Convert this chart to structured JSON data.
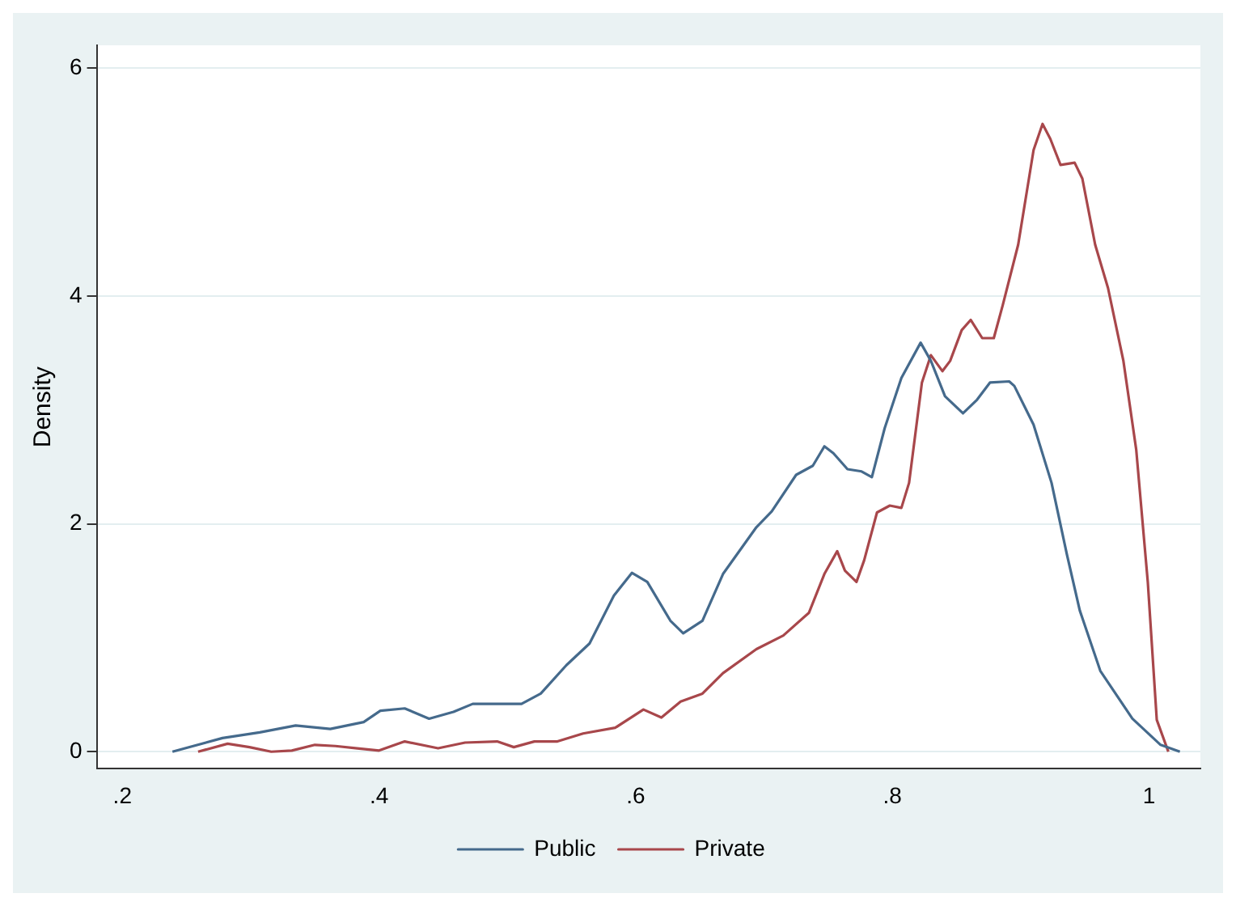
{
  "chart_data": {
    "type": "line",
    "ylabel": "Density",
    "xlim": [
      0.18,
      1.04
    ],
    "ylim": [
      -0.15,
      6.2
    ],
    "xticks": [
      {
        "value": 0.2,
        "label": ".2"
      },
      {
        "value": 0.4,
        "label": ".4"
      },
      {
        "value": 0.6,
        "label": ".6"
      },
      {
        "value": 0.8,
        "label": ".8"
      },
      {
        "value": 1,
        "label": "1"
      }
    ],
    "yticks": [
      0,
      2,
      4,
      6
    ],
    "grid": "y",
    "legend": "bottom",
    "marker": "none",
    "line_style": "solid",
    "series": [
      {
        "name": "Public",
        "color": "#456a8c",
        "x": [
          0.239,
          0.278,
          0.307,
          0.335,
          0.362,
          0.388,
          0.401,
          0.42,
          0.439,
          0.458,
          0.473,
          0.511,
          0.526,
          0.546,
          0.564,
          0.583,
          0.597,
          0.609,
          0.627,
          0.637,
          0.652,
          0.668,
          0.694,
          0.706,
          0.725,
          0.738,
          0.747,
          0.754,
          0.765,
          0.776,
          0.784,
          0.794,
          0.807,
          0.822,
          0.83,
          0.841,
          0.855,
          0.866,
          0.876,
          0.891,
          0.895,
          0.91,
          0.924,
          0.936,
          0.946,
          0.962,
          0.987,
          1.009,
          1.024
        ],
        "values": [
          0,
          0.12,
          0.17,
          0.23,
          0.2,
          0.26,
          0.36,
          0.38,
          0.29,
          0.35,
          0.42,
          0.42,
          0.51,
          0.76,
          0.95,
          1.37,
          1.57,
          1.49,
          1.15,
          1.04,
          1.15,
          1.56,
          1.97,
          2.11,
          2.43,
          2.51,
          2.68,
          2.62,
          2.48,
          2.46,
          2.41,
          2.84,
          3.28,
          3.59,
          3.43,
          3.12,
          2.97,
          3.09,
          3.24,
          3.25,
          3.21,
          2.87,
          2.36,
          1.73,
          1.24,
          0.71,
          0.29,
          0.06,
          0
        ]
      },
      {
        "name": "Private",
        "color": "#a8474b",
        "x": [
          0.259,
          0.282,
          0.299,
          0.316,
          0.332,
          0.35,
          0.366,
          0.383,
          0.4,
          0.42,
          0.446,
          0.467,
          0.492,
          0.505,
          0.521,
          0.539,
          0.559,
          0.584,
          0.606,
          0.62,
          0.635,
          0.652,
          0.668,
          0.694,
          0.715,
          0.735,
          0.747,
          0.757,
          0.763,
          0.772,
          0.778,
          0.788,
          0.798,
          0.807,
          0.813,
          0.823,
          0.83,
          0.839,
          0.845,
          0.854,
          0.861,
          0.87,
          0.879,
          0.886,
          0.898,
          0.91,
          0.917,
          0.923,
          0.931,
          0.942,
          0.948,
          0.958,
          0.968,
          0.98,
          0.99,
          0.999,
          1.006,
          1.015
        ],
        "values": [
          0,
          0.07,
          0.04,
          0,
          0.01,
          0.06,
          0.05,
          0.03,
          0.01,
          0.09,
          0.03,
          0.08,
          0.09,
          0.04,
          0.09,
          0.09,
          0.16,
          0.21,
          0.37,
          0.3,
          0.44,
          0.51,
          0.69,
          0.9,
          1.02,
          1.22,
          1.56,
          1.76,
          1.59,
          1.49,
          1.68,
          2.1,
          2.16,
          2.14,
          2.36,
          3.24,
          3.48,
          3.34,
          3.43,
          3.7,
          3.79,
          3.63,
          3.63,
          3.92,
          4.45,
          5.28,
          5.51,
          5.38,
          5.15,
          5.17,
          5.03,
          4.45,
          4.07,
          3.43,
          2.65,
          1.49,
          0.28,
          0
        ]
      }
    ]
  }
}
